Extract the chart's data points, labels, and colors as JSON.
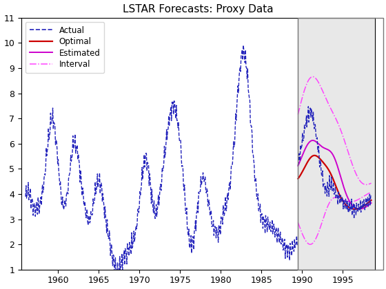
{
  "title": "LSTAR Forecasts: Proxy Data",
  "xlim": [
    1955.5,
    1999.0
  ],
  "ylim": [
    1,
    11
  ],
  "yticks": [
    1,
    2,
    3,
    4,
    5,
    6,
    7,
    8,
    9,
    10,
    11
  ],
  "xticks": [
    1960,
    1965,
    1970,
    1975,
    1980,
    1985,
    1990,
    1995
  ],
  "forecast_start": 1989.5,
  "shade_color": "#e8e8e8",
  "actual_color": "#2222bb",
  "optimal_color": "#cc0000",
  "estimated_color": "#cc00cc",
  "interval_color": "#ff44ff",
  "legend_labels": [
    "Actual",
    "Optimal",
    "Estimated",
    "Interval"
  ]
}
